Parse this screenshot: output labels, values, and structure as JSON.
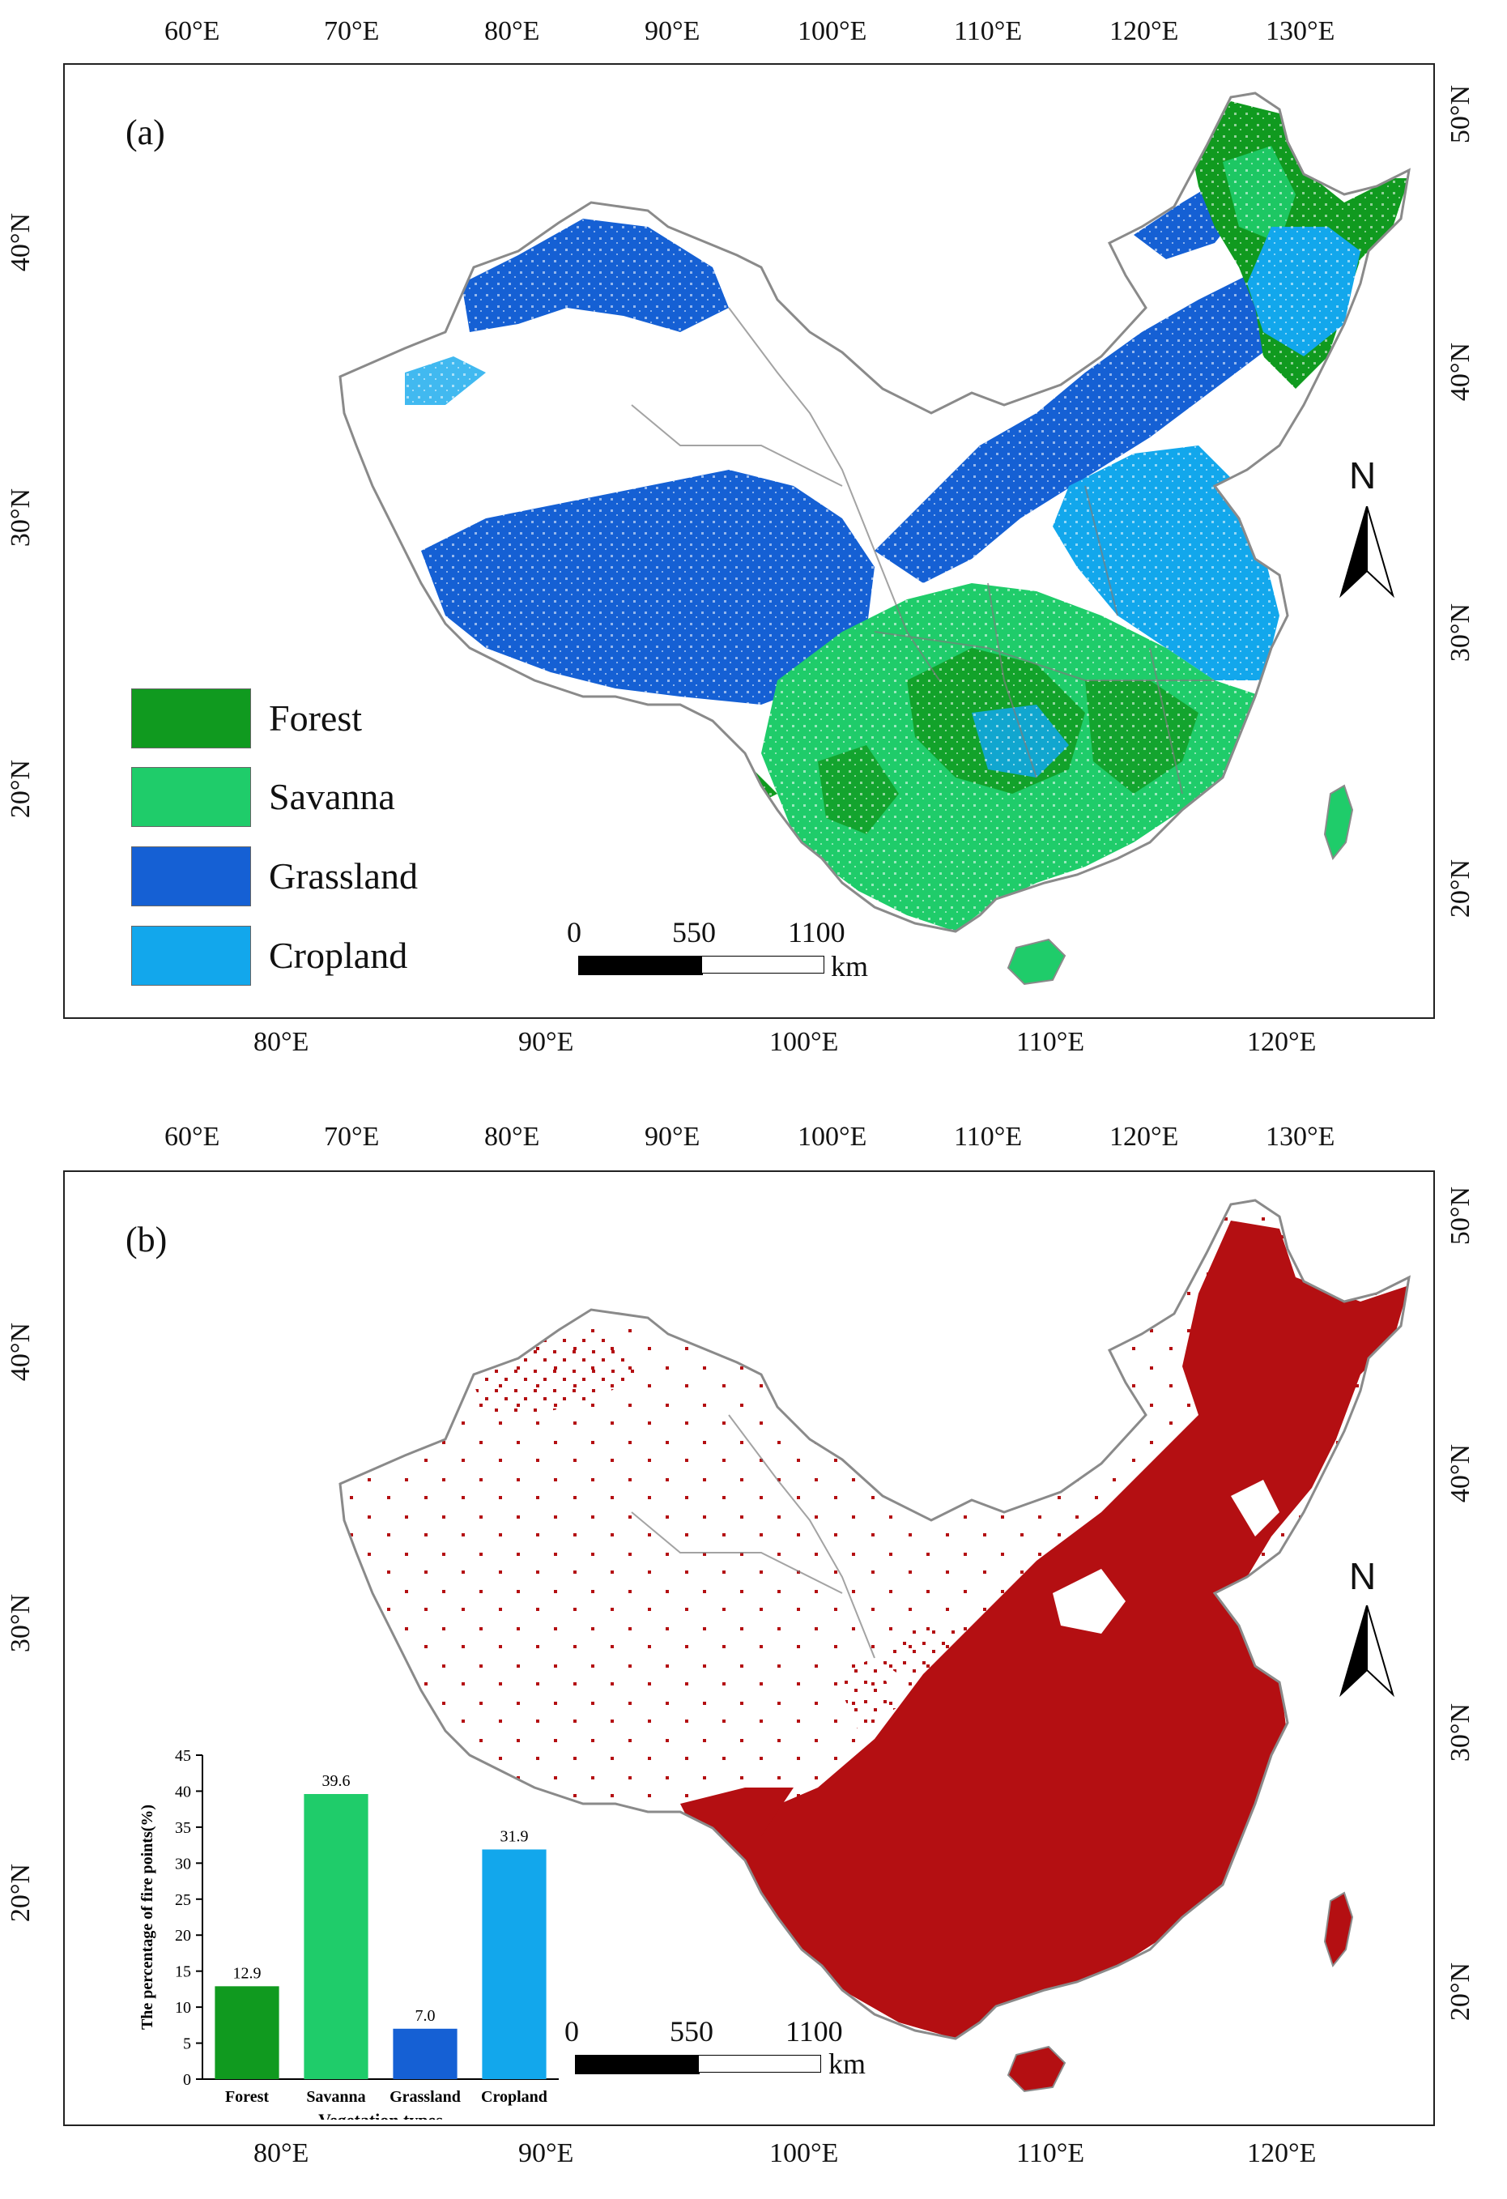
{
  "top_lon_labels": [
    "60°E",
    "70°E",
    "80°E",
    "90°E",
    "100°E",
    "110°E",
    "120°E",
    "130°E"
  ],
  "bottom_lon_labels": [
    "80°E",
    "90°E",
    "100°E",
    "110°E",
    "120°E"
  ],
  "left_lat_labels": [
    "40°N",
    "30°N",
    "20°N"
  ],
  "right_lat_labels": [
    "50°N",
    "40°N",
    "30°N",
    "20°N"
  ],
  "panel_a": {
    "label": "(a)",
    "legend": [
      {
        "name": "Forest",
        "color": "#109a1f"
      },
      {
        "name": "Savanna",
        "color": "#1fcc6a"
      },
      {
        "name": "Grassland",
        "color": "#1560d4"
      },
      {
        "name": "Cropland",
        "color": "#12a7ec"
      }
    ]
  },
  "panel_b": {
    "label": "(b)",
    "fire_color": "#b40f12"
  },
  "scale_bar": {
    "ticks": [
      "0",
      "550",
      "1100"
    ],
    "unit": "km"
  },
  "north_arrow": {
    "label": "N"
  },
  "chart_data": {
    "type": "bar",
    "categories": [
      "Forest",
      "Savanna",
      "Grassland",
      "Cropland"
    ],
    "values": [
      12.9,
      39.6,
      7.0,
      31.9
    ],
    "value_labels": [
      "12.9",
      "39.6",
      "7.0",
      "31.9"
    ],
    "colors": [
      "#109a1f",
      "#1fcc6a",
      "#1560d4",
      "#12a7ec"
    ],
    "xlabel": "Vegetation types",
    "ylabel": "The percentage of fire points(%)",
    "ylim": [
      0,
      45
    ],
    "yticks": [
      "0",
      "5",
      "10",
      "15",
      "20",
      "25",
      "30",
      "35",
      "40",
      "45"
    ]
  }
}
